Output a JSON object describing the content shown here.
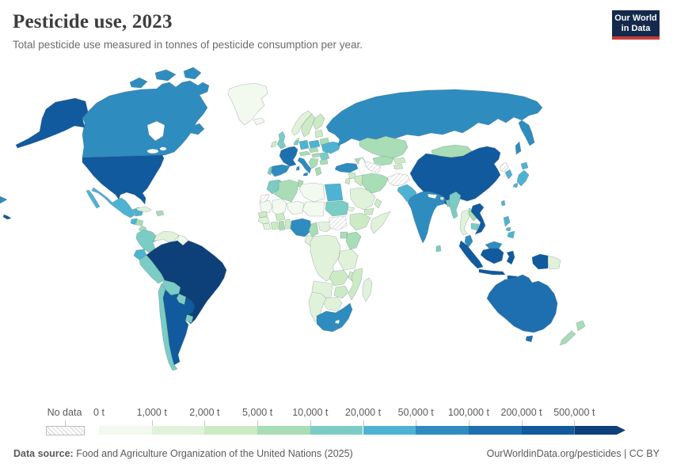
{
  "header": {
    "title": "Pesticide use, 2023",
    "subtitle": "Total pesticide use measured in tonnes of pesticide consumption per year."
  },
  "logo": {
    "line1": "Our World",
    "line2": "in Data",
    "navy": "#14294b",
    "red": "#c93c37"
  },
  "footer": {
    "source_label": "Data source:",
    "source_text": " Food and Agriculture Organization of the United Nations (2025)",
    "right_text": "OurWorldinData.org/pesticides | CC BY"
  },
  "chart_data": {
    "type": "choropleth",
    "title": "Pesticide use, 2023",
    "subtitle": "Total pesticide use measured in tonnes of pesticide consumption per year.",
    "unit": "tonnes per year",
    "year": "2023",
    "legend": {
      "no_data_label": "No data",
      "tick_labels": [
        "0 t",
        "1,000 t",
        "2,000 t",
        "5,000 t",
        "10,000 t",
        "20,000 t",
        "50,000 t",
        "100,000 t",
        "200,000 t",
        "500,000 t"
      ],
      "bin_colors": [
        "#f2f9ee",
        "#e0f3da",
        "#ccebc5",
        "#a8ddb5",
        "#7bccc4",
        "#4eb3d3",
        "#2f8cbf",
        "#1d6fb0",
        "#115a9e",
        "#0d4079"
      ],
      "bin_ranges": [
        "0–1,000 t",
        "1,000–2,000 t",
        "2,000–5,000 t",
        "5,000–10,000 t",
        "10,000–20,000 t",
        "20,000–50,000 t",
        "50,000–100,000 t",
        "100,000–200,000 t",
        "200,000–500,000 t",
        "500,000 t and over"
      ],
      "position": "bottom",
      "arrow_end": true
    },
    "regions": [
      {
        "id": "canada",
        "name": "Canada",
        "bin": 6
      },
      {
        "id": "united-states",
        "name": "United States",
        "bin": 8
      },
      {
        "id": "greenland",
        "name": "Greenland",
        "bin": 0
      },
      {
        "id": "mexico",
        "name": "Mexico",
        "bin": 5
      },
      {
        "id": "guatemala",
        "name": "Guatemala",
        "bin": 5
      },
      {
        "id": "honduras",
        "name": "Honduras",
        "bin": 3
      },
      {
        "id": "nicaragua",
        "name": "Nicaragua",
        "bin": 3
      },
      {
        "id": "costa-rica",
        "name": "Costa Rica",
        "bin": 4
      },
      {
        "id": "panama",
        "name": "Panama",
        "bin": 4
      },
      {
        "id": "cuba",
        "name": "Cuba",
        "bin": 1
      },
      {
        "id": "hispaniola",
        "name": "Haiti & Dominican Republic",
        "bin": 3
      },
      {
        "id": "colombia",
        "name": "Colombia",
        "bin": 4
      },
      {
        "id": "venezuela",
        "name": "Venezuela",
        "bin": 1
      },
      {
        "id": "guianas",
        "name": "Guyana & Suriname",
        "bin": 0
      },
      {
        "id": "ecuador",
        "name": "Ecuador",
        "bin": 5
      },
      {
        "id": "peru",
        "name": "Peru",
        "bin": 4
      },
      {
        "id": "brazil",
        "name": "Brazil",
        "bin": 9
      },
      {
        "id": "bolivia",
        "name": "Bolivia",
        "bin": 4
      },
      {
        "id": "paraguay",
        "name": "Paraguay",
        "bin": 4
      },
      {
        "id": "uruguay",
        "name": "Uruguay",
        "bin": 4
      },
      {
        "id": "chile",
        "name": "Chile",
        "bin": 4
      },
      {
        "id": "argentina",
        "name": "Argentina",
        "bin": 8
      },
      {
        "id": "iceland",
        "name": "Iceland",
        "bin": 0
      },
      {
        "id": "united-kingdom",
        "name": "United Kingdom",
        "bin": 4
      },
      {
        "id": "ireland",
        "name": "Ireland",
        "bin": 2
      },
      {
        "id": "norway",
        "name": "Norway",
        "bin": 1
      },
      {
        "id": "sweden",
        "name": "Sweden",
        "bin": 2
      },
      {
        "id": "finland",
        "name": "Finland",
        "bin": 2
      },
      {
        "id": "denmark",
        "name": "Denmark",
        "bin": 2
      },
      {
        "id": "baltic-states",
        "name": "Baltic states",
        "bin": 2
      },
      {
        "id": "belarus",
        "name": "Belarus",
        "bin": 3
      },
      {
        "id": "poland",
        "name": "Poland",
        "bin": 5
      },
      {
        "id": "germany",
        "name": "Germany",
        "bin": 5
      },
      {
        "id": "benelux",
        "name": "Belgium & Netherlands",
        "bin": 4
      },
      {
        "id": "france",
        "name": "France",
        "bin": 7
      },
      {
        "id": "spain",
        "name": "Spain",
        "bin": 6
      },
      {
        "id": "portugal",
        "name": "Portugal",
        "bin": 4
      },
      {
        "id": "italy",
        "name": "Italy",
        "bin": 6
      },
      {
        "id": "switzerland-austria",
        "name": "Switzerland & Austria",
        "bin": 3
      },
      {
        "id": "czechia-slovakia",
        "name": "Czechia & Slovakia",
        "bin": 3
      },
      {
        "id": "hungary",
        "name": "Hungary",
        "bin": 3
      },
      {
        "id": "romania",
        "name": "Romania",
        "bin": 4
      },
      {
        "id": "ukraine",
        "name": "Ukraine",
        "bin": 5
      },
      {
        "id": "balkans",
        "name": "Balkans",
        "bin": 3
      },
      {
        "id": "greece",
        "name": "Greece",
        "bin": 3
      },
      {
        "id": "bulgaria",
        "name": "Bulgaria",
        "bin": 3
      },
      {
        "id": "russia",
        "name": "Russia",
        "bin": 6
      },
      {
        "id": "kazakhstan",
        "name": "Kazakhstan",
        "bin": 3
      },
      {
        "id": "mongolia",
        "name": "Mongolia",
        "bin": 3
      },
      {
        "id": "uzbekistan",
        "name": "Uzbekistan",
        "bin": 3
      },
      {
        "id": "turkmenistan",
        "name": "Turkmenistan",
        "bin": null
      },
      {
        "id": "kyrgyzstan",
        "name": "Kyrgyzstan",
        "bin": 2
      },
      {
        "id": "tajikistan",
        "name": "Tajikistan",
        "bin": 2
      },
      {
        "id": "afghanistan",
        "name": "Afghanistan",
        "bin": null
      },
      {
        "id": "pakistan",
        "name": "Pakistan",
        "bin": 5
      },
      {
        "id": "caucasus",
        "name": "Caucasus",
        "bin": 3
      },
      {
        "id": "turkey",
        "name": "Turkey",
        "bin": 6
      },
      {
        "id": "syria",
        "name": "Syria",
        "bin": 2
      },
      {
        "id": "levant",
        "name": "Israel & Jordan",
        "bin": 2
      },
      {
        "id": "iraq",
        "name": "Iraq",
        "bin": 2
      },
      {
        "id": "iran",
        "name": "Iran",
        "bin": 3
      },
      {
        "id": "saudi-arabia",
        "name": "Saudi Arabia",
        "bin": 1
      },
      {
        "id": "yemen",
        "name": "Yemen",
        "bin": 2
      },
      {
        "id": "oman",
        "name": "Oman",
        "bin": 2
      },
      {
        "id": "china",
        "name": "China",
        "bin": 8
      },
      {
        "id": "north-korea",
        "name": "North Korea",
        "bin": null
      },
      {
        "id": "south-korea",
        "name": "South Korea",
        "bin": 5
      },
      {
        "id": "japan",
        "name": "Japan",
        "bin": 5
      },
      {
        "id": "taiwan",
        "name": "Taiwan",
        "bin": 5
      },
      {
        "id": "india",
        "name": "India",
        "bin": 6
      },
      {
        "id": "nepal",
        "name": "Nepal",
        "bin": 0
      },
      {
        "id": "bhutan",
        "name": "Bhutan",
        "bin": 2
      },
      {
        "id": "bangladesh",
        "name": "Bangladesh",
        "bin": 4
      },
      {
        "id": "sri-lanka",
        "name": "Sri Lanka",
        "bin": 4
      },
      {
        "id": "myanmar",
        "name": "Myanmar",
        "bin": 4
      },
      {
        "id": "thailand",
        "name": "Thailand",
        "bin": 1
      },
      {
        "id": "laos",
        "name": "Laos",
        "bin": 3
      },
      {
        "id": "cambodia",
        "name": "Cambodia",
        "bin": 4
      },
      {
        "id": "vietnam",
        "name": "Vietnam",
        "bin": 8
      },
      {
        "id": "malaysia",
        "name": "Malaysia",
        "bin": 6
      },
      {
        "id": "indonesia",
        "name": "Indonesia",
        "bin": 8
      },
      {
        "id": "papua-new-guinea",
        "name": "Papua New Guinea",
        "bin": 1
      },
      {
        "id": "philippines",
        "name": "Philippines",
        "bin": 5
      },
      {
        "id": "australia",
        "name": "Australia",
        "bin": 7
      },
      {
        "id": "new-zealand",
        "name": "New Zealand",
        "bin": 3
      },
      {
        "id": "morocco",
        "name": "Morocco",
        "bin": 4
      },
      {
        "id": "western-sahara",
        "name": "Western Sahara",
        "bin": null
      },
      {
        "id": "algeria",
        "name": "Algeria",
        "bin": 3
      },
      {
        "id": "tunisia",
        "name": "Tunisia",
        "bin": 3
      },
      {
        "id": "libya",
        "name": "Libya",
        "bin": 0
      },
      {
        "id": "egypt",
        "name": "Egypt",
        "bin": 5
      },
      {
        "id": "mauritania",
        "name": "Mauritania",
        "bin": 0
      },
      {
        "id": "mali",
        "name": "Mali",
        "bin": 0
      },
      {
        "id": "niger",
        "name": "Niger",
        "bin": 0
      },
      {
        "id": "chad",
        "name": "Chad",
        "bin": 0
      },
      {
        "id": "sudan",
        "name": "Sudan",
        "bin": 4
      },
      {
        "id": "eritrea",
        "name": "Eritrea",
        "bin": 1
      },
      {
        "id": "senegal",
        "name": "Senegal",
        "bin": 2
      },
      {
        "id": "guinea",
        "name": "Guinea",
        "bin": 1
      },
      {
        "id": "sierra-leone-liberia",
        "name": "Sierra Leone & Liberia",
        "bin": 1
      },
      {
        "id": "ivory-coast",
        "name": "Cote d'Ivoire",
        "bin": 2
      },
      {
        "id": "burkina-faso",
        "name": "Burkina Faso",
        "bin": 2
      },
      {
        "id": "ghana",
        "name": "Ghana",
        "bin": 3
      },
      {
        "id": "togo-benin",
        "name": "Togo & Benin",
        "bin": 2
      },
      {
        "id": "nigeria",
        "name": "Nigeria",
        "bin": 6
      },
      {
        "id": "cameroon",
        "name": "Cameroon",
        "bin": 3
      },
      {
        "id": "central-african-republic",
        "name": "Central African Republic",
        "bin": 1
      },
      {
        "id": "south-sudan",
        "name": "South Sudan",
        "bin": null
      },
      {
        "id": "ethiopia",
        "name": "Ethiopia",
        "bin": 2
      },
      {
        "id": "somalia",
        "name": "Somalia",
        "bin": 1
      },
      {
        "id": "uganda",
        "name": "Uganda",
        "bin": 3
      },
      {
        "id": "kenya",
        "name": "Kenya",
        "bin": 3
      },
      {
        "id": "gabon-congo",
        "name": "Gabon & Congo",
        "bin": 1
      },
      {
        "id": "drc",
        "name": "Democratic Republic of Congo",
        "bin": 1
      },
      {
        "id": "tanzania",
        "name": "Tanzania",
        "bin": 1
      },
      {
        "id": "angola",
        "name": "Angola",
        "bin": 1
      },
      {
        "id": "zambia",
        "name": "Zambia",
        "bin": 2
      },
      {
        "id": "malawi",
        "name": "Malawi",
        "bin": 2
      },
      {
        "id": "mozambique",
        "name": "Mozambique",
        "bin": 2
      },
      {
        "id": "zimbabwe",
        "name": "Zimbabwe",
        "bin": 2
      },
      {
        "id": "botswana",
        "name": "Botswana",
        "bin": 1
      },
      {
        "id": "namibia",
        "name": "Namibia",
        "bin": 1
      },
      {
        "id": "south-africa",
        "name": "South Africa",
        "bin": 6
      },
      {
        "id": "lesotho",
        "name": "Lesotho",
        "bin": 0
      },
      {
        "id": "madagascar",
        "name": "Madagascar",
        "bin": 1
      }
    ]
  }
}
